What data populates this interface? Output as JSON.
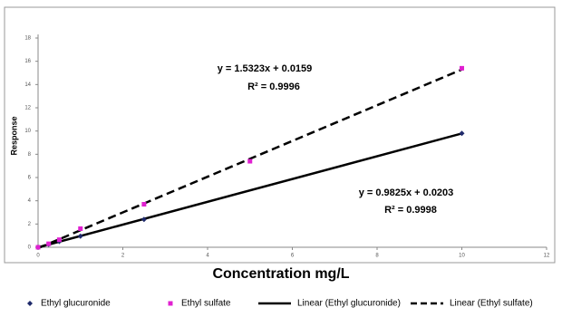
{
  "chart_data": {
    "type": "scatter",
    "x_label": "Concentration mg/L",
    "y_label": "Response",
    "xlim": [
      0,
      12
    ],
    "xticks": [
      0,
      2,
      4,
      6,
      8,
      10,
      12
    ],
    "ylim": [
      0,
      18
    ],
    "yticks": [
      0,
      2,
      4,
      6,
      8,
      10,
      12,
      14,
      16,
      18
    ],
    "series": [
      {
        "name": "Ethyl glucuronide",
        "color": "#1f2a6b",
        "marker": "diamond",
        "x": [
          0,
          0.25,
          0.5,
          1,
          2.5,
          10
        ],
        "values": [
          0,
          0.25,
          0.5,
          0.95,
          2.4,
          9.8
        ]
      },
      {
        "name": "Ethyl sulfate",
        "color": "#e020d0",
        "marker": "square",
        "x": [
          0,
          0.25,
          0.5,
          1,
          2.5,
          5,
          10
        ],
        "values": [
          0,
          0.3,
          0.65,
          1.6,
          3.7,
          7.4,
          15.4
        ]
      }
    ],
    "trendlines": [
      {
        "name": "Linear (Ethyl glucuronide)",
        "color": "#000000",
        "dashed": false,
        "equation": "y = 0.9825x + 0.0203",
        "r2": "R² = 0.9998"
      },
      {
        "name": "Linear (Ethyl sulfate)",
        "color": "#000000",
        "dashed": true,
        "equation": "y = 1.5323x + 0.0159",
        "r2": "R² = 0.9996"
      }
    ]
  }
}
